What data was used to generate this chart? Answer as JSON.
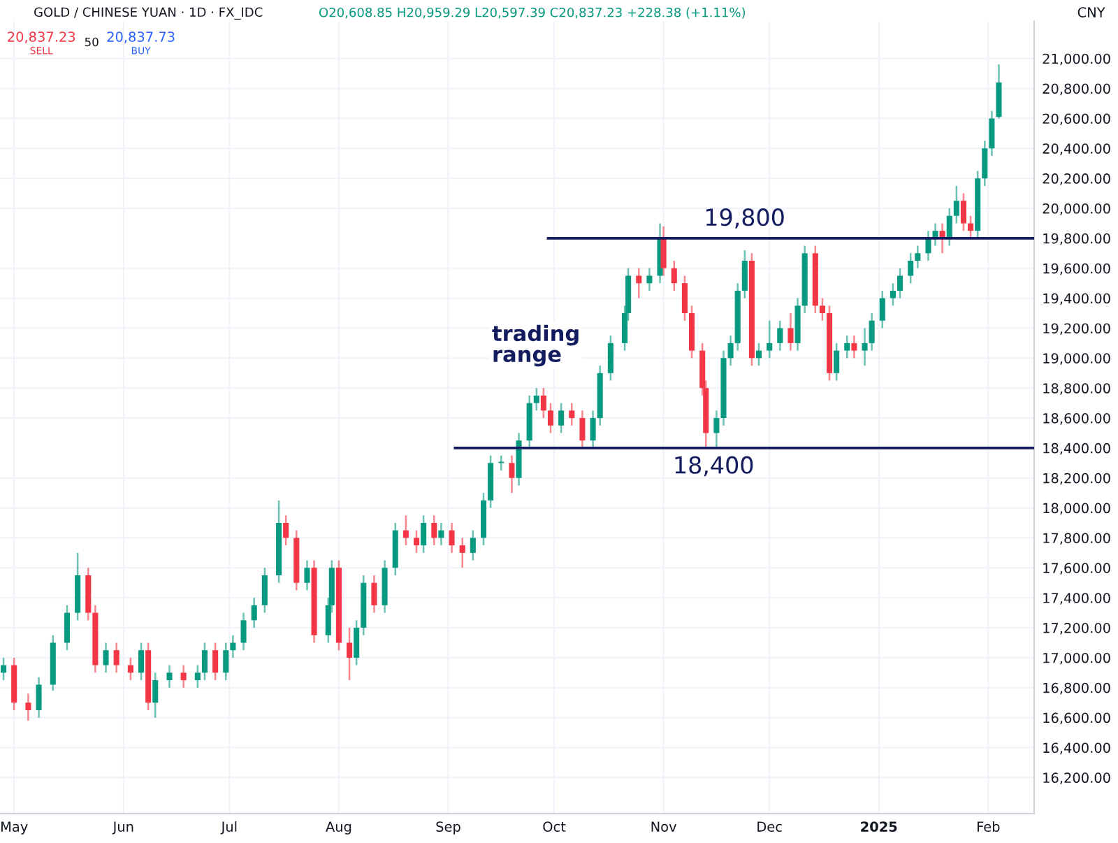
{
  "chart_data": {
    "type": "candlestick",
    "title": "GOLD / CHINESE YUAN · 1D · FX_IDC",
    "annotations": [
      "O20,608.85 H20,959.29 L20,597.39 C20,837.23 +228.38 (+1.11%)",
      "20,837.23",
      "SELL",
      "50",
      "20,837.73",
      "BUY",
      "CNY",
      "trading range"
    ],
    "x": [
      "2024-04-28",
      "2024-05-01",
      "2024-05-05",
      "2024-05-08",
      "2024-05-12",
      "2024-05-16",
      "2024-05-19",
      "2024-05-22",
      "2024-05-24",
      "2024-05-27",
      "2024-05-30",
      "2024-06-03",
      "2024-06-06",
      "2024-06-08",
      "2024-06-10",
      "2024-06-14",
      "2024-06-18",
      "2024-06-22",
      "2024-06-24",
      "2024-06-27",
      "2024-06-30",
      "2024-07-02",
      "2024-07-05",
      "2024-07-08",
      "2024-07-11",
      "2024-07-15",
      "2024-07-17",
      "2024-07-20",
      "2024-07-23",
      "2024-07-25",
      "2024-07-29",
      "2024-07-30",
      "2024-08-01",
      "2024-08-04",
      "2024-08-06",
      "2024-08-08",
      "2024-08-11",
      "2024-08-14",
      "2024-08-17",
      "2024-08-20",
      "2024-08-23",
      "2024-08-25",
      "2024-08-28",
      "2024-08-30",
      "2024-09-02",
      "2024-09-05",
      "2024-09-08",
      "2024-09-11",
      "2024-09-13",
      "2024-09-16",
      "2024-09-19",
      "2024-09-21",
      "2024-09-24",
      "2024-09-26",
      "2024-09-28",
      "2024-09-30",
      "2024-10-03",
      "2024-10-06",
      "2024-10-09",
      "2024-10-12",
      "2024-10-14",
      "2024-10-17",
      "2024-10-21",
      "2024-10-22",
      "2024-10-25",
      "2024-10-28",
      "2024-10-31",
      "2024-11-01",
      "2024-11-04",
      "2024-11-07",
      "2024-11-09",
      "2024-11-12",
      "2024-11-13",
      "2024-11-16",
      "2024-11-18",
      "2024-11-20",
      "2024-11-22",
      "2024-11-24",
      "2024-11-26",
      "2024-11-28",
      "2024-12-01",
      "2024-12-04",
      "2024-12-07",
      "2024-12-09",
      "2024-12-11",
      "2024-12-14",
      "2024-12-16",
      "2024-12-18",
      "2024-12-20",
      "2024-12-23",
      "2024-12-25",
      "2024-12-28",
      "2024-12-30",
      "2025-01-02",
      "2025-01-05",
      "2025-01-07",
      "2025-01-10",
      "2025-01-12",
      "2025-01-15",
      "2025-01-17",
      "2025-01-19",
      "2025-01-21",
      "2025-01-23",
      "2025-01-25",
      "2025-01-27",
      "2025-01-29",
      "2025-01-31",
      "2025-02-02",
      "2025-02-04"
    ],
    "ohlc": [
      [
        16900,
        17000,
        16850,
        16950
      ],
      [
        16950,
        17000,
        16650,
        16700
      ],
      [
        16700,
        16760,
        16580,
        16650
      ],
      [
        16650,
        16870,
        16600,
        16820
      ],
      [
        16820,
        17150,
        16780,
        17100
      ],
      [
        17100,
        17350,
        17050,
        17300
      ],
      [
        17300,
        17700,
        17250,
        17550
      ],
      [
        17550,
        17600,
        17250,
        17300
      ],
      [
        17300,
        17350,
        16900,
        16950
      ],
      [
        16950,
        17100,
        16900,
        17050
      ],
      [
        17050,
        17100,
        16900,
        16950
      ],
      [
        16950,
        17000,
        16850,
        16900
      ],
      [
        16900,
        17100,
        16850,
        17050
      ],
      [
        17050,
        17100,
        16650,
        16700
      ],
      [
        16700,
        16900,
        16600,
        16850
      ],
      [
        16850,
        16950,
        16800,
        16900
      ],
      [
        16900,
        16950,
        16800,
        16850
      ],
      [
        16850,
        16950,
        16800,
        16900
      ],
      [
        16900,
        17100,
        16850,
        17050
      ],
      [
        17050,
        17100,
        16850,
        16900
      ],
      [
        16900,
        17100,
        16850,
        17050
      ],
      [
        17050,
        17150,
        17000,
        17100
      ],
      [
        17100,
        17300,
        17050,
        17250
      ],
      [
        17250,
        17400,
        17200,
        17350
      ],
      [
        17350,
        17600,
        17300,
        17550
      ],
      [
        17550,
        18050,
        17500,
        17900
      ],
      [
        17900,
        17950,
        17750,
        17800
      ],
      [
        17800,
        17850,
        17450,
        17500
      ],
      [
        17500,
        17650,
        17450,
        17600
      ],
      [
        17600,
        17650,
        17100,
        17150
      ],
      [
        17150,
        17400,
        17100,
        17350
      ],
      [
        17350,
        17650,
        17300,
        17600
      ],
      [
        17600,
        17650,
        17050,
        17100
      ],
      [
        17100,
        17200,
        16850,
        17000
      ],
      [
        17000,
        17250,
        16950,
        17200
      ],
      [
        17200,
        17550,
        17150,
        17500
      ],
      [
        17500,
        17550,
        17300,
        17350
      ],
      [
        17350,
        17650,
        17300,
        17600
      ],
      [
        17600,
        17900,
        17550,
        17850
      ],
      [
        17850,
        17950,
        17750,
        17800
      ],
      [
        17800,
        17850,
        17700,
        17750
      ],
      [
        17750,
        17950,
        17700,
        17900
      ],
      [
        17900,
        17950,
        17750,
        17800
      ],
      [
        17800,
        17900,
        17750,
        17850
      ],
      [
        17850,
        17900,
        17700,
        17750
      ],
      [
        17750,
        17800,
        17600,
        17700
      ],
      [
        17700,
        17850,
        17650,
        17800
      ],
      [
        17800,
        18100,
        17750,
        18050
      ],
      [
        18050,
        18350,
        18000,
        18300
      ],
      [
        18300,
        18350,
        18250,
        18300
      ],
      [
        18300,
        18350,
        18100,
        18200
      ],
      [
        18200,
        18500,
        18150,
        18450
      ],
      [
        18450,
        18750,
        18400,
        18700
      ],
      [
        18700,
        18800,
        18650,
        18750
      ],
      [
        18750,
        18800,
        18600,
        18650
      ],
      [
        18650,
        18700,
        18500,
        18550
      ],
      [
        18550,
        18700,
        18500,
        18650
      ],
      [
        18650,
        18700,
        18550,
        18600
      ],
      [
        18600,
        18650,
        18400,
        18450
      ],
      [
        18450,
        18650,
        18400,
        18600
      ],
      [
        18600,
        18950,
        18550,
        18900
      ],
      [
        18900,
        19150,
        18850,
        19100
      ],
      [
        19100,
        19350,
        19050,
        19300
      ],
      [
        19300,
        19600,
        19250,
        19550
      ],
      [
        19550,
        19600,
        19400,
        19500
      ],
      [
        19500,
        19600,
        19450,
        19550
      ],
      [
        19550,
        19900,
        19500,
        19800
      ],
      [
        19800,
        19880,
        19550,
        19600
      ],
      [
        19600,
        19650,
        19450,
        19500
      ],
      [
        19500,
        19550,
        19250,
        19300
      ],
      [
        19300,
        19350,
        19000,
        19050
      ],
      [
        19050,
        19100,
        18750,
        18800
      ],
      [
        18800,
        18850,
        18400,
        18500
      ],
      [
        18500,
        18650,
        18400,
        18600
      ],
      [
        18600,
        19050,
        18550,
        19000
      ],
      [
        19000,
        19150,
        18950,
        19100
      ],
      [
        19100,
        19500,
        19050,
        19450
      ],
      [
        19450,
        19720,
        19400,
        19650
      ],
      [
        19650,
        19700,
        18950,
        19000
      ],
      [
        19000,
        19100,
        18950,
        19050
      ],
      [
        19050,
        19250,
        19000,
        19100
      ],
      [
        19100,
        19250,
        19050,
        19200
      ],
      [
        19200,
        19300,
        19050,
        19100
      ],
      [
        19100,
        19400,
        19050,
        19350
      ],
      [
        19350,
        19750,
        19300,
        19700
      ],
      [
        19700,
        19750,
        19300,
        19350
      ],
      [
        19350,
        19400,
        19250,
        19300
      ],
      [
        19300,
        19350,
        18850,
        18900
      ],
      [
        18900,
        19100,
        18850,
        19050
      ],
      [
        19050,
        19150,
        19000,
        19100
      ],
      [
        19100,
        19150,
        19000,
        19050
      ],
      [
        19050,
        19200,
        18950,
        19100
      ],
      [
        19100,
        19300,
        19050,
        19250
      ],
      [
        19250,
        19450,
        19200,
        19400
      ],
      [
        19400,
        19500,
        19350,
        19450
      ],
      [
        19450,
        19600,
        19400,
        19550
      ],
      [
        19550,
        19700,
        19500,
        19650
      ],
      [
        19650,
        19750,
        19600,
        19700
      ],
      [
        19700,
        19850,
        19650,
        19800
      ],
      [
        19800,
        19900,
        19750,
        19850
      ],
      [
        19850,
        19900,
        19700,
        19800
      ],
      [
        19800,
        20000,
        19750,
        19950
      ],
      [
        19950,
        20150,
        19900,
        20050
      ],
      [
        20050,
        20100,
        19850,
        19900
      ],
      [
        19900,
        19950,
        19800,
        19850
      ],
      [
        19850,
        20250,
        19800,
        20200
      ],
      [
        20200,
        20450,
        20150,
        20400
      ],
      [
        20400,
        20650,
        20350,
        20600
      ],
      [
        20610,
        20960,
        20600,
        20840
      ]
    ],
    "colors": [
      "#089981",
      "#f23645",
      "#f23645",
      "#089981",
      "#089981",
      "#089981",
      "#089981",
      "#f23645",
      "#f23645",
      "#089981",
      "#f23645",
      "#f23645",
      "#089981",
      "#f23645",
      "#089981",
      "#089981",
      "#f23645",
      "#089981",
      "#089981",
      "#f23645",
      "#089981",
      "#089981",
      "#089981",
      "#089981",
      "#089981",
      "#089981",
      "#f23645",
      "#f23645",
      "#089981",
      "#f23645",
      "#089981",
      "#089981",
      "#f23645",
      "#f23645",
      "#089981",
      "#089981",
      "#f23645",
      "#089981",
      "#089981",
      "#f23645",
      "#f23645",
      "#089981",
      "#f23645",
      "#089981",
      "#f23645",
      "#f23645",
      "#089981",
      "#089981",
      "#089981",
      "#089981",
      "#f23645",
      "#089981",
      "#089981",
      "#089981",
      "#f23645",
      "#f23645",
      "#089981",
      "#f23645",
      "#f23645",
      "#089981",
      "#089981",
      "#089981",
      "#089981",
      "#089981",
      "#f23645",
      "#089981",
      "#089981",
      "#f23645",
      "#f23645",
      "#f23645",
      "#f23645",
      "#f23645",
      "#f23645",
      "#089981",
      "#089981",
      "#089981",
      "#089981",
      "#089981",
      "#f23645",
      "#089981",
      "#089981",
      "#089981",
      "#f23645",
      "#089981",
      "#089981",
      "#f23645",
      "#f23645",
      "#f23645",
      "#089981",
      "#089981",
      "#f23645",
      "#089981",
      "#089981",
      "#089981",
      "#089981",
      "#089981",
      "#089981",
      "#089981",
      "#089981",
      "#089981",
      "#f23645",
      "#089981",
      "#089981",
      "#f23645",
      "#f23645",
      "#089981",
      "#089981",
      "#089981",
      "#089981"
    ],
    "xlim": [
      "2024-04-27",
      "2025-02-14"
    ],
    "xticks": [
      {
        "value": "2024-05-01",
        "label": "May"
      },
      {
        "value": "2024-06-01",
        "label": "Jun"
      },
      {
        "value": "2024-07-01",
        "label": "Jul"
      },
      {
        "value": "2024-08-01",
        "label": "Aug"
      },
      {
        "value": "2024-09-01",
        "label": "Sep"
      },
      {
        "value": "2024-10-01",
        "label": "Oct"
      },
      {
        "value": "2024-11-01",
        "label": "Nov"
      },
      {
        "value": "2024-12-01",
        "label": "Dec"
      },
      {
        "value": "2025-01-01",
        "label": "2025"
      },
      {
        "value": "2025-02-01",
        "label": "Feb"
      }
    ],
    "ylim": [
      15960,
      21250
    ],
    "yticks": [
      {
        "value": 16200,
        "label": "16,200.00"
      },
      {
        "value": 16400,
        "label": "16,400.00"
      },
      {
        "value": 16600,
        "label": "16,600.00"
      },
      {
        "value": 16800,
        "label": "16,800.00"
      },
      {
        "value": 17000,
        "label": "17,000.00"
      },
      {
        "value": 17200,
        "label": "17,200.00"
      },
      {
        "value": 17400,
        "label": "17,400.00"
      },
      {
        "value": 17600,
        "label": "17,600.00"
      },
      {
        "value": 17800,
        "label": "17,800.00"
      },
      {
        "value": 18000,
        "label": "18,000.00"
      },
      {
        "value": 18200,
        "label": "18,200.00"
      },
      {
        "value": 18400,
        "label": "18,400.00"
      },
      {
        "value": 18600,
        "label": "18,600.00"
      },
      {
        "value": 18800,
        "label": "18,800.00"
      },
      {
        "value": 19000,
        "label": "19,000.00"
      },
      {
        "value": 19200,
        "label": "19,200.00"
      },
      {
        "value": 19400,
        "label": "19,400.00"
      },
      {
        "value": 19600,
        "label": "19,600.00"
      },
      {
        "value": 19800,
        "label": "19,800.00"
      },
      {
        "value": 20000,
        "label": "20,000.00"
      },
      {
        "value": 20200,
        "label": "20,200.00"
      },
      {
        "value": 20400,
        "label": "20,400.00"
      },
      {
        "value": 20600,
        "label": "20,600.00"
      },
      {
        "value": 20800,
        "label": "20,800.00"
      },
      {
        "value": 21000,
        "label": "21,000.00"
      }
    ],
    "ref_lines": [
      {
        "axis": "y",
        "value": 19800,
        "label": "19,800",
        "color": "#131c5e"
      },
      {
        "axis": "y",
        "value": 18400,
        "label": "18,400",
        "color": "#131c5e"
      }
    ],
    "grid": true
  }
}
